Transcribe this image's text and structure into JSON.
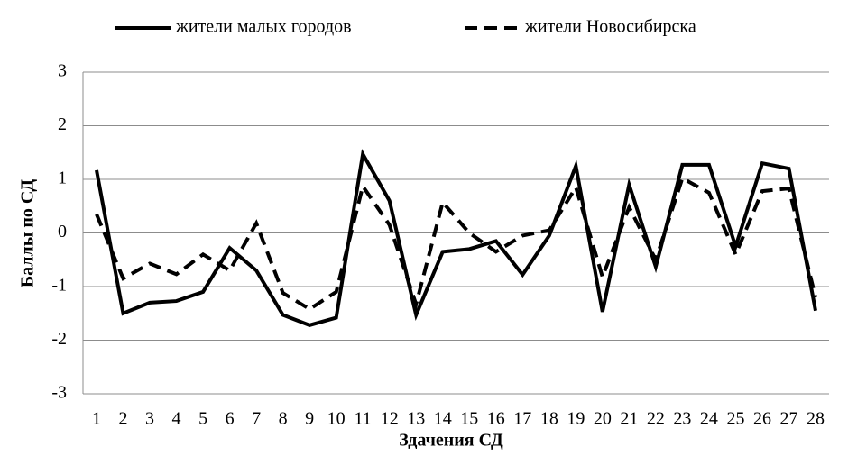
{
  "chart_data": {
    "type": "line",
    "x_label": "Здачения СД",
    "y_label": "Баллы по СД",
    "x": [
      1,
      2,
      3,
      4,
      5,
      6,
      7,
      8,
      9,
      10,
      11,
      12,
      13,
      14,
      15,
      16,
      17,
      18,
      19,
      20,
      21,
      22,
      23,
      24,
      25,
      26,
      27,
      28
    ],
    "series": [
      {
        "name": "жители малых городов",
        "color": "#000000",
        "dash": "solid",
        "values": [
          1.17,
          -1.5,
          -1.3,
          -1.27,
          -1.1,
          -0.28,
          -0.7,
          -1.53,
          -1.72,
          -1.58,
          1.47,
          0.6,
          -1.53,
          -0.35,
          -0.3,
          -0.15,
          -0.78,
          -0.05,
          1.25,
          -1.47,
          0.9,
          -0.63,
          1.27,
          1.27,
          -0.25,
          1.3,
          1.2,
          -1.45
        ]
      },
      {
        "name": "жители Новосибирска",
        "color": "#000000",
        "dash": "dashed",
        "values": [
          0.35,
          -0.85,
          -0.57,
          -0.77,
          -0.4,
          -0.7,
          0.18,
          -1.12,
          -1.42,
          -1.1,
          0.87,
          0.15,
          -1.33,
          0.57,
          0.0,
          -0.35,
          -0.05,
          0.05,
          0.85,
          -0.82,
          0.48,
          -0.5,
          1.02,
          0.75,
          -0.4,
          0.78,
          0.83,
          -1.2
        ]
      }
    ],
    "ylim": [
      -3,
      3
    ],
    "yticks": [
      -3,
      -2,
      -1,
      0,
      1,
      2,
      3
    ],
    "grid": true,
    "legend": "top"
  }
}
